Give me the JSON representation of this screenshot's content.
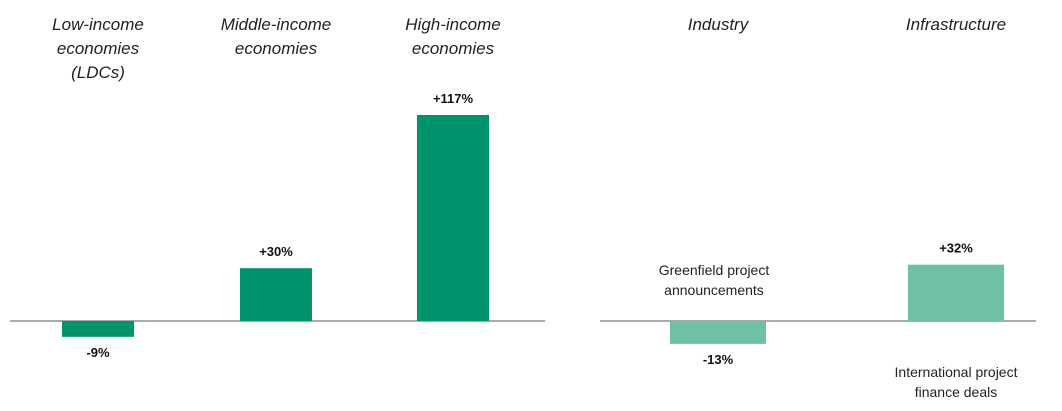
{
  "colors": {
    "dark_green": "#00946E",
    "light_green": "#6EC1A3",
    "axis": "#555555"
  },
  "chart_data": [
    {
      "type": "bar",
      "categories": [
        [
          "Low-income",
          "economies",
          "(LDCs)"
        ],
        [
          "Middle-income",
          "economies"
        ],
        [
          "High-income",
          "economies"
        ]
      ],
      "values": [
        -9,
        30,
        117
      ],
      "value_labels": [
        "-9%",
        "+30%",
        "+117%"
      ],
      "color": "#00946E"
    },
    {
      "type": "bar",
      "categories": [
        [
          "Industry"
        ],
        [
          "Infrastructure"
        ]
      ],
      "values": [
        -13,
        32
      ],
      "value_labels": [
        "-13%",
        "+32%"
      ],
      "color": "#6EC1A3",
      "annotations": [
        [
          "Greenfield project",
          "announcements"
        ],
        [
          "International project",
          "finance deals"
        ]
      ]
    }
  ]
}
